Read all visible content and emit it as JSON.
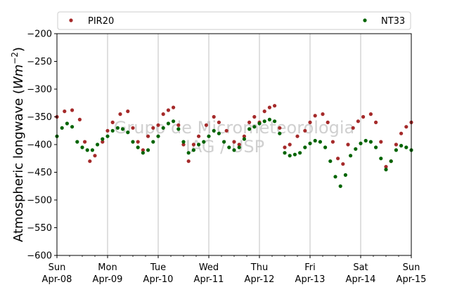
{
  "chart_data": {
    "type": "scatter",
    "ylabel_main": "Atmospheric longwave (",
    "ylabel_unit": "Wm",
    "ylabel_exp": "−2",
    "ylabel_close": ")",
    "ylim": [
      -600,
      -200
    ],
    "yticks": [
      -600,
      -550,
      -500,
      -450,
      -400,
      -350,
      -300,
      -250,
      -200
    ],
    "ytick_labels": [
      "−600",
      "−550",
      "−500",
      "−450",
      "−400",
      "−350",
      "−300",
      "−250",
      "−200"
    ],
    "xlim": [
      "2018-04-08 00:00",
      "2018-04-15 00:00"
    ],
    "xticks": [
      {
        "day": "Sun",
        "date": "Apr-08"
      },
      {
        "day": "Mon",
        "date": "Apr-09"
      },
      {
        "day": "Tue",
        "date": "Apr-10"
      },
      {
        "day": "Wed",
        "date": "Apr-11"
      },
      {
        "day": "Thu",
        "date": "Apr-12"
      },
      {
        "day": "Fri",
        "date": "Apr-13"
      },
      {
        "day": "Sat",
        "date": "Apr-14"
      },
      {
        "day": "Sun",
        "date": "Apr-15"
      }
    ],
    "grid": "vertical",
    "legend_position": "top",
    "watermark_lines": [
      "Grupo de Micrometeorologia",
      "IAG / USP"
    ],
    "series": [
      {
        "name": "PIR20",
        "color": "#a52a2a",
        "points": [
          [
            0.0,
            -350
          ],
          [
            0.15,
            -340
          ],
          [
            0.3,
            -338
          ],
          [
            0.45,
            -355
          ],
          [
            0.55,
            -395
          ],
          [
            0.65,
            -430
          ],
          [
            0.75,
            -420
          ],
          [
            0.9,
            -395
          ],
          [
            1.0,
            -375
          ],
          [
            1.1,
            -360
          ],
          [
            1.25,
            -345
          ],
          [
            1.4,
            -340
          ],
          [
            1.5,
            -370
          ],
          [
            1.6,
            -395
          ],
          [
            1.7,
            -410
          ],
          [
            1.8,
            -385
          ],
          [
            1.9,
            -370
          ],
          [
            2.0,
            -365
          ],
          [
            2.1,
            -345
          ],
          [
            2.2,
            -338
          ],
          [
            2.3,
            -333
          ],
          [
            2.4,
            -365
          ],
          [
            2.5,
            -400
          ],
          [
            2.6,
            -430
          ],
          [
            2.7,
            -400
          ],
          [
            2.8,
            -385
          ],
          [
            2.95,
            -365
          ],
          [
            3.1,
            -350
          ],
          [
            3.2,
            -360
          ],
          [
            3.35,
            -375
          ],
          [
            3.5,
            -395
          ],
          [
            3.6,
            -400
          ],
          [
            3.7,
            -385
          ],
          [
            3.8,
            -360
          ],
          [
            3.9,
            -350
          ],
          [
            4.0,
            -360
          ],
          [
            4.1,
            -340
          ],
          [
            4.2,
            -333
          ],
          [
            4.3,
            -330
          ],
          [
            4.4,
            -370
          ],
          [
            4.5,
            -405
          ],
          [
            4.6,
            -400
          ],
          [
            4.75,
            -385
          ],
          [
            4.9,
            -375
          ],
          [
            5.0,
            -360
          ],
          [
            5.1,
            -348
          ],
          [
            5.25,
            -345
          ],
          [
            5.35,
            -360
          ],
          [
            5.45,
            -395
          ],
          [
            5.55,
            -425
          ],
          [
            5.65,
            -435
          ],
          [
            5.75,
            -400
          ],
          [
            5.85,
            -370
          ],
          [
            5.95,
            -358
          ],
          [
            6.05,
            -350
          ],
          [
            6.2,
            -345
          ],
          [
            6.3,
            -360
          ],
          [
            6.4,
            -395
          ],
          [
            6.5,
            -440
          ],
          [
            6.6,
            -430
          ],
          [
            6.7,
            -400
          ],
          [
            6.8,
            -380
          ],
          [
            6.9,
            -368
          ],
          [
            7.0,
            -360
          ]
        ]
      },
      {
        "name": "NT33",
        "color": "#006400",
        "points": [
          [
            0.0,
            -385
          ],
          [
            0.1,
            -370
          ],
          [
            0.2,
            -362
          ],
          [
            0.3,
            -368
          ],
          [
            0.4,
            -395
          ],
          [
            0.5,
            -405
          ],
          [
            0.6,
            -410
          ],
          [
            0.7,
            -410
          ],
          [
            0.8,
            -400
          ],
          [
            0.9,
            -390
          ],
          [
            1.0,
            -385
          ],
          [
            1.1,
            -375
          ],
          [
            1.2,
            -370
          ],
          [
            1.3,
            -372
          ],
          [
            1.4,
            -378
          ],
          [
            1.5,
            -395
          ],
          [
            1.6,
            -405
          ],
          [
            1.7,
            -415
          ],
          [
            1.8,
            -410
          ],
          [
            1.9,
            -395
          ],
          [
            2.0,
            -385
          ],
          [
            2.1,
            -370
          ],
          [
            2.2,
            -362
          ],
          [
            2.3,
            -358
          ],
          [
            2.4,
            -372
          ],
          [
            2.5,
            -395
          ],
          [
            2.6,
            -415
          ],
          [
            2.7,
            -410
          ],
          [
            2.8,
            -400
          ],
          [
            2.9,
            -395
          ],
          [
            3.0,
            -385
          ],
          [
            3.1,
            -375
          ],
          [
            3.2,
            -380
          ],
          [
            3.3,
            -395
          ],
          [
            3.4,
            -405
          ],
          [
            3.5,
            -410
          ],
          [
            3.6,
            -405
          ],
          [
            3.7,
            -390
          ],
          [
            3.8,
            -372
          ],
          [
            3.9,
            -368
          ],
          [
            4.0,
            -362
          ],
          [
            4.1,
            -358
          ],
          [
            4.2,
            -355
          ],
          [
            4.3,
            -358
          ],
          [
            4.4,
            -380
          ],
          [
            4.5,
            -415
          ],
          [
            4.6,
            -420
          ],
          [
            4.7,
            -418
          ],
          [
            4.8,
            -415
          ],
          [
            4.9,
            -405
          ],
          [
            5.0,
            -398
          ],
          [
            5.1,
            -393
          ],
          [
            5.2,
            -395
          ],
          [
            5.3,
            -405
          ],
          [
            5.4,
            -430
          ],
          [
            5.5,
            -458
          ],
          [
            5.6,
            -475
          ],
          [
            5.7,
            -455
          ],
          [
            5.8,
            -420
          ],
          [
            5.9,
            -408
          ],
          [
            6.0,
            -398
          ],
          [
            6.1,
            -393
          ],
          [
            6.2,
            -395
          ],
          [
            6.3,
            -405
          ],
          [
            6.4,
            -425
          ],
          [
            6.5,
            -445
          ],
          [
            6.6,
            -430
          ],
          [
            6.7,
            -410
          ],
          [
            6.8,
            -402
          ],
          [
            6.9,
            -405
          ],
          [
            7.0,
            -410
          ]
        ]
      }
    ]
  }
}
